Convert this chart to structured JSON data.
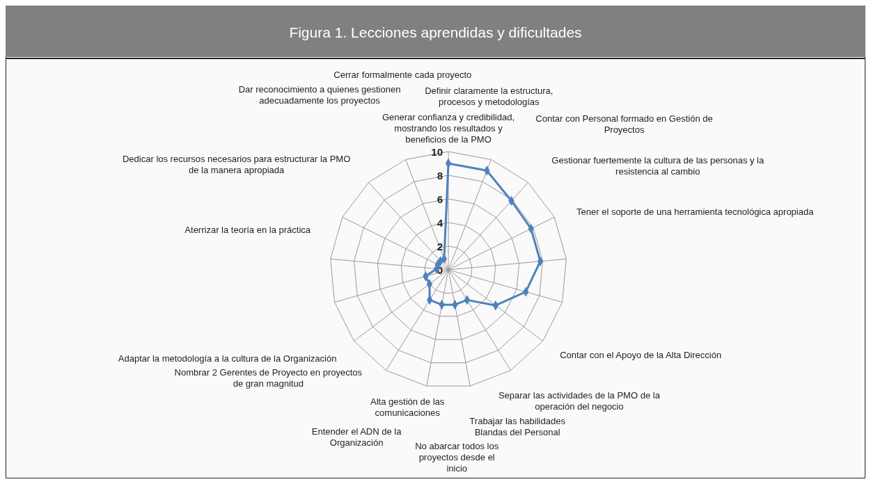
{
  "chart_data": {
    "type": "radar",
    "title": "Figura 1. Lecciones aprendidas y dificultades",
    "categories": [
      "Generar confianza y credibilidad, mostrando los resultados y beneficios de la PMO",
      "Definir claramente la estructura, procesos y  metodologías",
      "Contar con Personal formado en Gestión de Proyectos",
      "Gestionar fuertemente la cultura de las personas y la resistencia al cambio",
      "Tener el soporte de una herramienta tecnológica apropiada",
      "Contar con el Apoyo de la Alta Dirección",
      "Separar las actividades de la PMO de la operación del negocio",
      "Trabajar las habilidades Blandas del Personal",
      "No abarcar todos los proyectos desde el inicio",
      "Alta gestión de las comunicaciones",
      "Entender el ADN de la Organización",
      "Nombrar 2 Gerentes de Proyecto en proyectos de gran magnitud",
      "Adaptar la metodología a la cultura de la Organización",
      "Aterrizar la teoría en la práctica",
      "Dedicar los recursos necesarios para estructurar la PMO de la manera apropiada",
      "Dar reconocimiento a quienes gestionen adecuadamente los proyectos",
      "Cerrar formalmente cada proyecto"
    ],
    "series": [
      {
        "color": "#4f81bd",
        "values": [
          9,
          9,
          7.9,
          7.8,
          7.8,
          6.8,
          5,
          3,
          3,
          3,
          3,
          2,
          2,
          1,
          1,
          1,
          1
        ]
      }
    ],
    "ylim": [
      0,
      10
    ],
    "yticks": [
      0,
      2,
      4,
      6,
      8,
      10
    ],
    "grid": true,
    "marker": "diamond"
  }
}
